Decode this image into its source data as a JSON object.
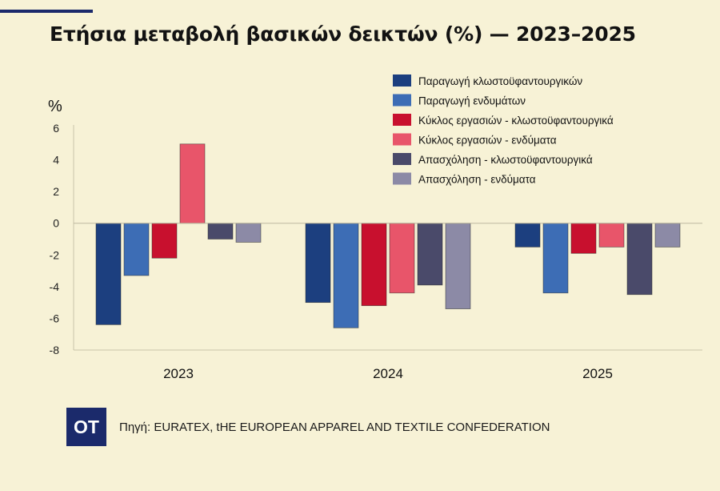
{
  "title": "Ετήσια μεταβολή βασικών δεικτών (%) — 2023–2025",
  "footer": {
    "logo_text": "OT",
    "source": "Πηγή: EURATEX, tHE EUROPEAN APPAREL AND TEXTILE CONFEDERATION"
  },
  "chart_data": {
    "type": "bar",
    "ylabel": "%",
    "ylim": [
      -8,
      6
    ],
    "yticks": [
      6,
      4,
      2,
      0,
      -2,
      -4,
      -6,
      -8
    ],
    "grid": false,
    "legend_position": "top-right",
    "categories": [
      "2023",
      "2024",
      "2025"
    ],
    "series": [
      {
        "name": "Παραγωγή κλωστοϋφαντουργικών",
        "color": "#1c3f7f",
        "values": [
          -6.4,
          -5.0,
          -1.5
        ]
      },
      {
        "name": "Παραγωγή ενδυμάτων",
        "color": "#3d6db5",
        "values": [
          -3.3,
          -6.6,
          -4.4
        ]
      },
      {
        "name": "Κύκλος εργασιών - κλωστοϋφαντουργικά",
        "color": "#c8102e",
        "values": [
          -2.2,
          -5.2,
          -1.9
        ]
      },
      {
        "name": "Κύκλος εργασιών - ενδύματα",
        "color": "#e8556a",
        "values": [
          5.0,
          -4.4,
          -1.5
        ]
      },
      {
        "name": "Απασχόληση - κλωστοϋφαντουργικά",
        "color": "#4a4a6a",
        "values": [
          -1.0,
          -3.9,
          -4.5
        ]
      },
      {
        "name": "Απασχόληση - ενδύματα",
        "color": "#8c8aa6",
        "values": [
          -1.2,
          -5.4,
          -1.5
        ]
      }
    ]
  }
}
